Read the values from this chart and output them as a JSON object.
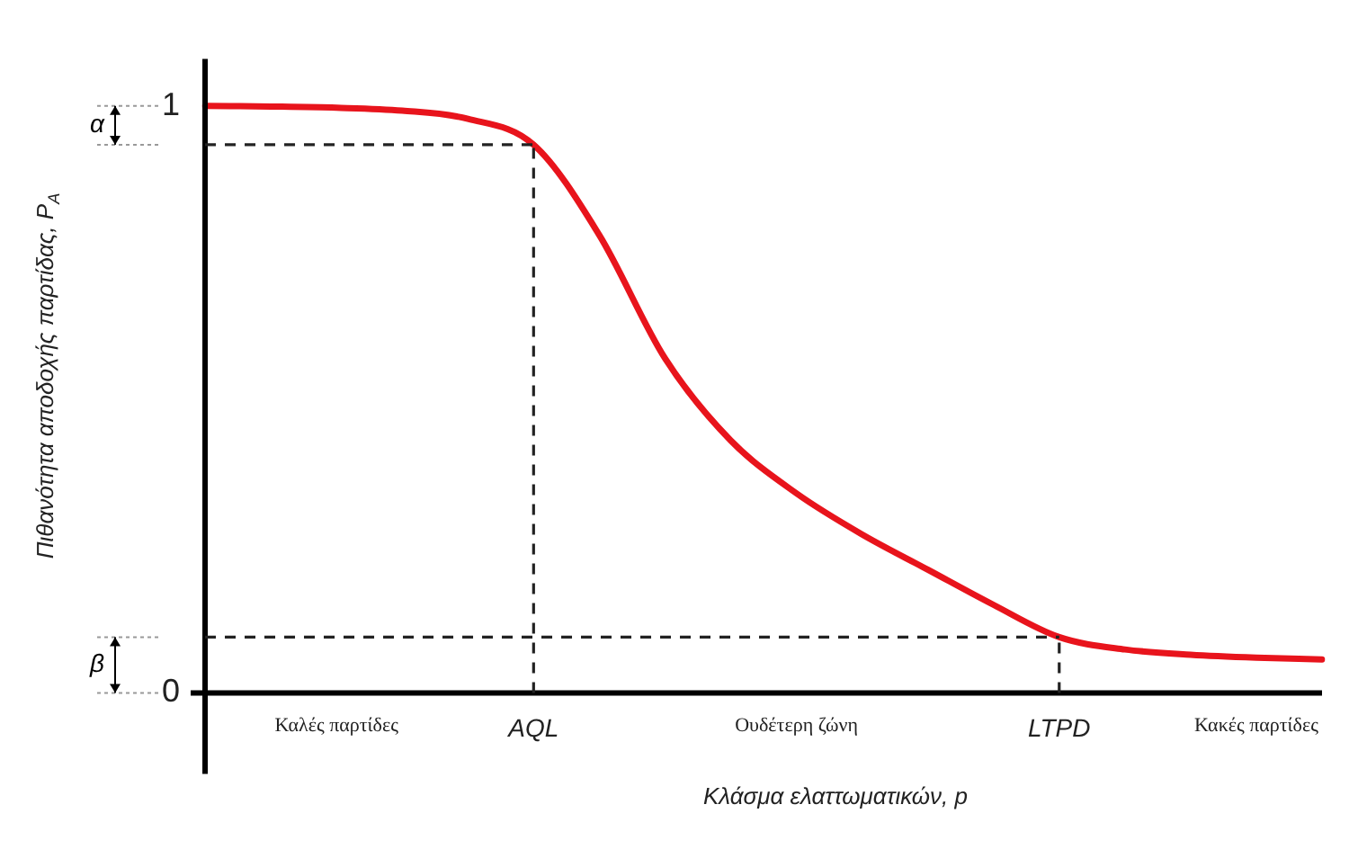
{
  "chart_data": {
    "type": "line",
    "xlabel": "Κλάσμα ελαττωματικών, p",
    "ylabel": "Πιθανότητα αποδοχής παρτίδας, P$_{A}$",
    "categories": [
      null,
      null,
      "Καλές παρτίδες",
      null,
      null,
      "AQL",
      null,
      null,
      null,
      "Ουδέτερη ζώνη",
      null,
      null,
      null,
      "LTPD",
      null,
      null,
      "Κακές παρτίδες",
      null
    ],
    "series": [
      {
        "color": "#e8141c",
        "values": [
          1.0,
          0.999,
          0.997,
          0.992,
          0.978,
          0.934,
          0.78,
          0.57,
          0.43,
          0.34,
          0.27,
          0.21,
          0.15,
          0.095,
          0.074,
          0.065,
          0.06,
          0.057
        ]
      }
    ],
    "ylim": [
      0,
      1.08
    ],
    "yticks": [
      0,
      1
    ],
    "ref_lines": [
      {
        "axis": "y",
        "value": 0.934,
        "line_style": "dashed"
      },
      {
        "axis": "y",
        "value": 0.095,
        "line_style": "dashed"
      },
      {
        "axis": "x",
        "value": "AQL",
        "line_style": "dashed"
      },
      {
        "axis": "x",
        "value": "LTPD",
        "line_style": "dashed"
      }
    ],
    "annotations": [
      "α",
      "β"
    ],
    "grid": false,
    "legend": false,
    "marker": "none",
    "line_style": "solid"
  }
}
